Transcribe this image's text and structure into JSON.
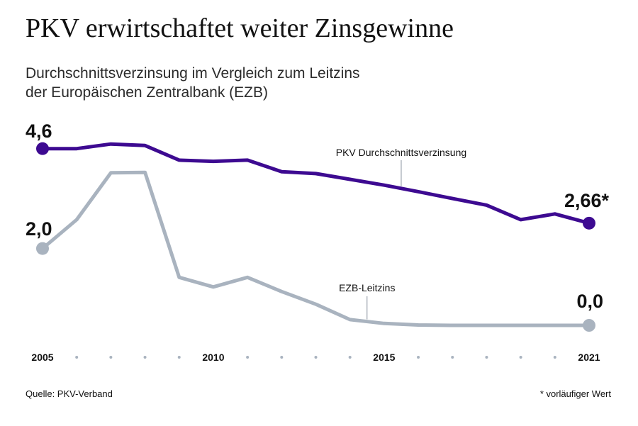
{
  "header": {
    "title": "PKV erwirtschaftet weiter Zinsgewinne",
    "subtitle_line1": "Durchschnittsverzinsung im Vergleich zum Leitzins",
    "subtitle_line2": "der Europäischen Zentralbank (EZB)"
  },
  "footer": {
    "source": "Quelle: PKV-Verband",
    "footnote": "* vorläufiger Wert"
  },
  "colors": {
    "pkv": "#3d0a91",
    "ezb": "#a9b3bf",
    "tick_dot": "#a9b3bf"
  },
  "chart_data": {
    "type": "line",
    "title": "PKV erwirtschaftet weiter Zinsgewinne",
    "x": [
      2005,
      2006,
      2007,
      2008,
      2009,
      2010,
      2011,
      2012,
      2013,
      2014,
      2015,
      2016,
      2017,
      2018,
      2019,
      2020,
      2021
    ],
    "tick_labels": [
      {
        "x": 2005,
        "label": "2005"
      },
      {
        "x": 2010,
        "label": "2010"
      },
      {
        "x": 2015,
        "label": "2015"
      },
      {
        "x": 2021,
        "label": "2021"
      }
    ],
    "ylim": [
      0,
      5
    ],
    "series": [
      {
        "name": "PKV Durchschnittsverzinsung",
        "key": "pkv",
        "values": [
          4.6,
          4.6,
          4.72,
          4.68,
          4.3,
          4.27,
          4.3,
          4.0,
          3.95,
          3.8,
          3.65,
          3.48,
          3.3,
          3.13,
          2.75,
          2.9,
          2.66
        ],
        "start_label": "4,6",
        "end_label": "2,66*",
        "label_anchor_x": 2015.5
      },
      {
        "name": "EZB-Leitzins",
        "key": "ezb",
        "values": [
          2.0,
          2.75,
          3.97,
          3.98,
          1.25,
          1.0,
          1.25,
          0.88,
          0.55,
          0.15,
          0.05,
          0.01,
          0.0,
          0.0,
          0.0,
          0.0,
          0.0
        ],
        "start_label": "2,0",
        "end_label": "0,0",
        "label_anchor_x": 2014.5
      }
    ]
  }
}
